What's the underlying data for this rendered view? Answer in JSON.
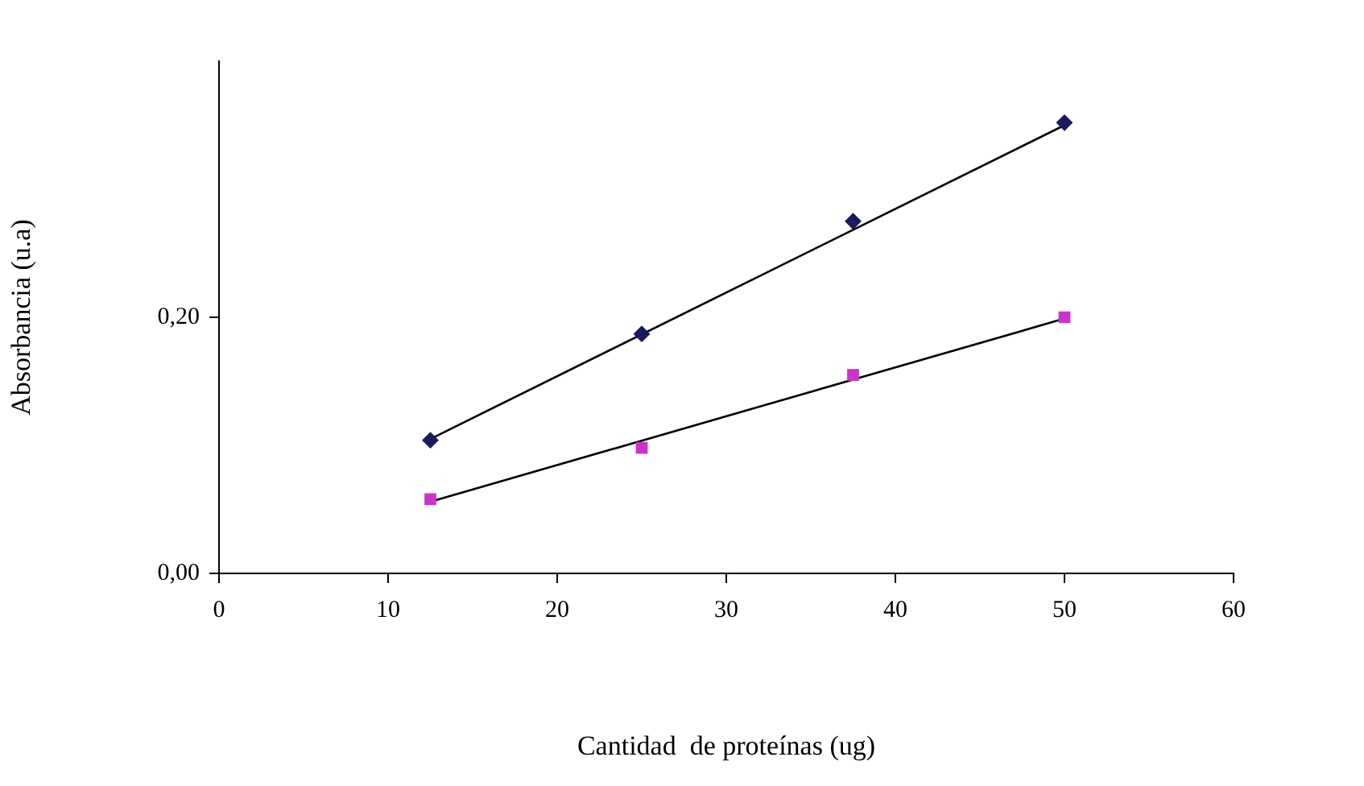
{
  "chart_data": {
    "type": "scatter",
    "xlabel": "Cantidad  de proteínas (ug)",
    "ylabel": "Absorbancia (u.a)",
    "xlim": [
      0,
      60
    ],
    "xticks": [
      0,
      10,
      20,
      30,
      40,
      50,
      60
    ],
    "ylim": [
      0,
      0.4
    ],
    "yticks": [
      {
        "value": 0,
        "label": "0,00"
      },
      {
        "value": 0.2,
        "label": "0,20"
      }
    ],
    "grid": false,
    "legend": false,
    "series": [
      {
        "type": "scatter",
        "marker": "diamond",
        "color": "#1a1a5e",
        "x": [
          12.5,
          25,
          37.5,
          50
        ],
        "values": [
          0.104,
          0.187,
          0.275,
          0.352
        ]
      },
      {
        "type": "scatter",
        "marker": "square",
        "color": "#cc33cc",
        "x": [
          12.5,
          25,
          37.5,
          50
        ],
        "values": [
          0.058,
          0.098,
          0.155,
          0.2
        ]
      },
      {
        "type": "line",
        "color": "#000000",
        "x": [
          12.5,
          50
        ],
        "values": [
          0.105,
          0.35
        ]
      },
      {
        "type": "line",
        "color": "#000000",
        "x": [
          12.5,
          50
        ],
        "values": [
          0.056,
          0.199
        ]
      }
    ]
  }
}
